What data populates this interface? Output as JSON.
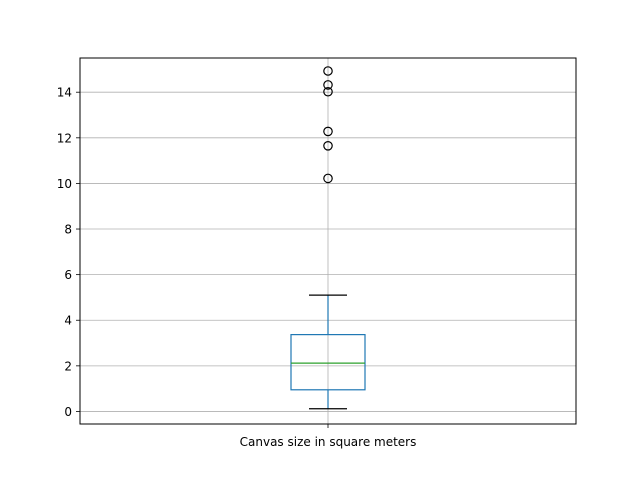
{
  "chart_data": {
    "type": "box",
    "categories": [
      "Canvas size in square meters"
    ],
    "grid": true,
    "ylim": [
      -0.55,
      15.5
    ],
    "yticks": [
      0,
      2,
      4,
      6,
      8,
      10,
      12,
      14
    ],
    "box": {
      "whisker_low": 0.12,
      "q1": 0.95,
      "median": 2.12,
      "q3": 3.37,
      "whisker_high": 5.1
    },
    "outliers": [
      10.22,
      11.65,
      12.28,
      14.02,
      14.32,
      14.93
    ],
    "colors": {
      "box": "#1f77b4",
      "median": "#2ca02c",
      "whisker": "#000000",
      "outlier": "#000000",
      "grid": "#b0b0b0"
    }
  }
}
